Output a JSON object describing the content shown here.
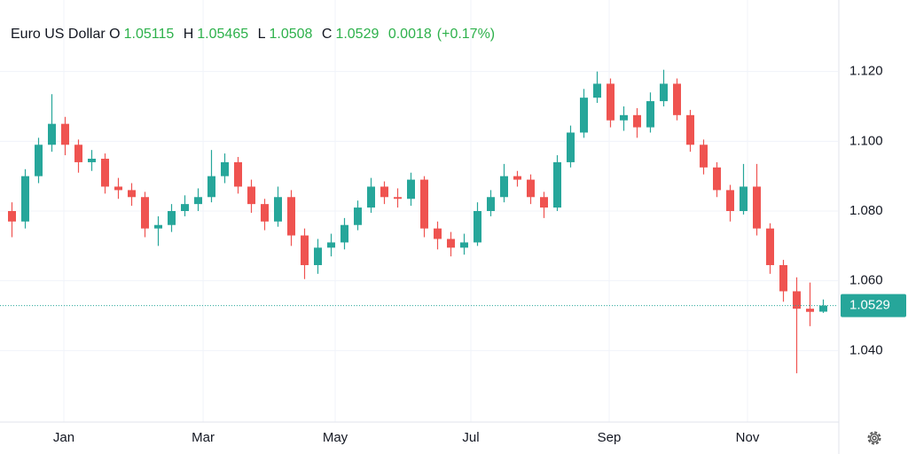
{
  "chart_data": {
    "type": "candlestick",
    "title": "Euro US Dollar",
    "ohlc_labels": {
      "open": "O",
      "high": "H",
      "low": "L",
      "close": "C"
    },
    "change": 0.0018,
    "change_percent_label": "(+0.17%)",
    "up_color": "#26a69a",
    "down_color": "#ef5350",
    "header_value_color": "#2db14b",
    "open": [
      1.08,
      1.077,
      1.09,
      1.099,
      1.105,
      1.099,
      1.094,
      1.095,
      1.087,
      1.086,
      1.084,
      1.075,
      1.076,
      1.08,
      1.082,
      1.084,
      1.09,
      1.094,
      1.087,
      1.082,
      1.077,
      1.084,
      1.073,
      1.0645,
      1.0695,
      1.071,
      1.076,
      1.081,
      1.087,
      1.084,
      1.0835,
      1.089,
      1.075,
      1.072,
      1.0695,
      1.071,
      1.08,
      1.084,
      1.09,
      1.089,
      1.084,
      1.081,
      1.094,
      1.1025,
      1.1125,
      1.1165,
      1.106,
      1.1075,
      1.104,
      1.1115,
      1.1165,
      1.1075,
      1.099,
      1.0925,
      1.086,
      1.08,
      1.087,
      1.075,
      1.0645,
      1.057,
      1.052,
      1.05115
    ],
    "high": [
      1.0825,
      1.092,
      1.101,
      1.1135,
      1.107,
      1.1005,
      1.0975,
      1.0965,
      1.0895,
      1.088,
      1.0855,
      1.0785,
      1.082,
      1.0845,
      1.0865,
      1.0975,
      1.0965,
      1.0955,
      1.089,
      1.0835,
      1.087,
      1.086,
      1.075,
      1.072,
      1.0735,
      1.078,
      1.083,
      1.0895,
      1.0885,
      1.0865,
      1.091,
      1.09,
      1.077,
      1.074,
      1.0735,
      1.0825,
      1.086,
      1.0935,
      1.0915,
      1.0905,
      1.0855,
      1.096,
      1.1045,
      1.115,
      1.12,
      1.118,
      1.11,
      1.1095,
      1.114,
      1.1205,
      1.118,
      1.109,
      1.1005,
      1.094,
      1.0875,
      1.0935,
      1.0935,
      1.0765,
      1.066,
      1.061,
      1.0595,
      1.05465
    ],
    "low": [
      1.0725,
      1.075,
      1.088,
      1.097,
      1.096,
      1.091,
      1.0915,
      1.085,
      1.0835,
      1.0815,
      1.0725,
      1.07,
      1.074,
      1.0785,
      1.08,
      1.0825,
      1.088,
      1.085,
      1.0795,
      1.0745,
      1.0755,
      1.07,
      1.0605,
      1.062,
      1.067,
      1.069,
      1.0745,
      1.0795,
      1.082,
      1.081,
      1.0815,
      1.0725,
      1.069,
      1.067,
      1.0675,
      1.07,
      1.0785,
      1.0825,
      1.087,
      1.082,
      1.078,
      1.08,
      1.0925,
      1.101,
      1.111,
      1.104,
      1.103,
      1.101,
      1.1025,
      1.11,
      1.106,
      1.097,
      1.0905,
      1.084,
      1.077,
      1.079,
      1.073,
      1.062,
      1.054,
      1.0335,
      1.047,
      1.0508
    ],
    "close": [
      1.077,
      1.09,
      1.099,
      1.105,
      1.099,
      1.094,
      1.095,
      1.087,
      1.086,
      1.084,
      1.075,
      1.076,
      1.08,
      1.082,
      1.084,
      1.09,
      1.094,
      1.087,
      1.082,
      1.077,
      1.084,
      1.073,
      1.0645,
      1.0695,
      1.071,
      1.076,
      1.081,
      1.087,
      1.084,
      1.0835,
      1.089,
      1.075,
      1.072,
      1.0695,
      1.071,
      1.08,
      1.084,
      1.09,
      1.089,
      1.084,
      1.081,
      1.094,
      1.1025,
      1.1125,
      1.1165,
      1.106,
      1.1075,
      1.104,
      1.1115,
      1.1165,
      1.1075,
      1.099,
      1.0925,
      1.086,
      1.08,
      1.087,
      1.075,
      1.0645,
      1.057,
      1.052,
      1.0511,
      1.0529
    ],
    "xlim": [
      -0.9,
      62.1
    ],
    "xticks": [
      {
        "value": 3.9,
        "label": "Jan"
      },
      {
        "value": 14.37,
        "label": "Mar"
      },
      {
        "value": 24.3,
        "label": "May"
      },
      {
        "value": 34.5,
        "label": "Jul"
      },
      {
        "value": 44.9,
        "label": "Sep"
      },
      {
        "value": 55.3,
        "label": "Nov"
      }
    ],
    "ylim": [
      1.0195,
      1.1405
    ],
    "yticks": [
      {
        "value": 1.04,
        "label": "1.040"
      },
      {
        "value": 1.06,
        "label": "1.060"
      },
      {
        "value": 1.08,
        "label": "1.080"
      },
      {
        "value": 1.1,
        "label": "1.100"
      },
      {
        "value": 1.12,
        "label": "1.120"
      }
    ],
    "grid": true
  }
}
